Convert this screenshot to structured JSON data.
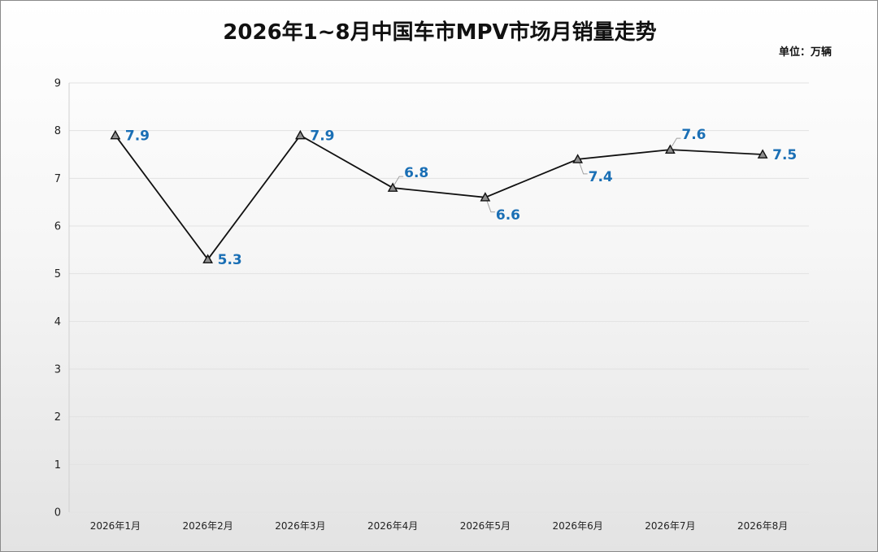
{
  "chart_data": {
    "type": "line",
    "title": "2026年1~8月中国车市MPV市场月销量走势",
    "unit": "单位：万辆",
    "categories": [
      "2026年1月",
      "2026年2月",
      "2026年3月",
      "2026年4月",
      "2026年5月",
      "2026年6月",
      "2026年7月",
      "2026年8月"
    ],
    "series": [
      {
        "values": [
          7.9,
          5.3,
          7.9,
          6.8,
          6.6,
          7.4,
          7.6,
          7.5
        ]
      }
    ],
    "ylim": [
      0,
      9
    ],
    "yticks": [
      0,
      1,
      2,
      3,
      4,
      5,
      6,
      7,
      8,
      9
    ],
    "grid": true,
    "marker": "triangle",
    "colors": {
      "line": "#111111",
      "marker_fill": "#8f8f8f",
      "label": "#1a6fb5",
      "grid": "#e2e2e2",
      "leader": "#a0a0a0"
    }
  }
}
